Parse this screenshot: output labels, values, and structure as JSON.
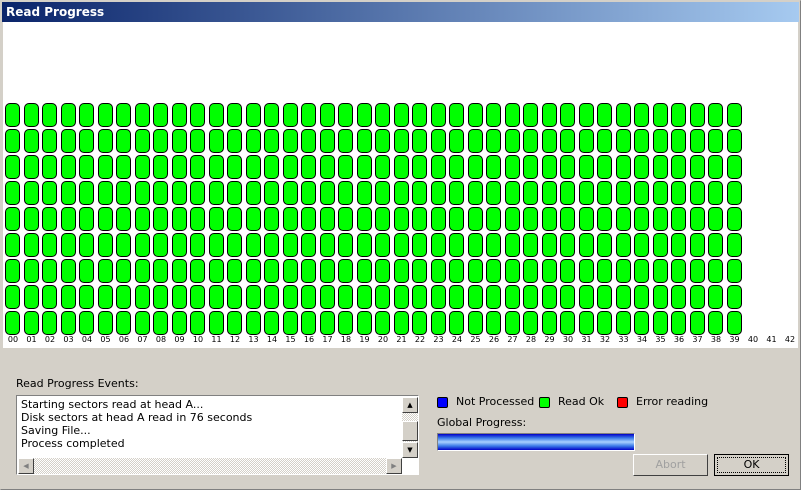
{
  "window": {
    "title": "Read Progress"
  },
  "grid": {
    "rows": 9,
    "column_labels": [
      "00",
      "01",
      "02",
      "03",
      "04",
      "05",
      "06",
      "07",
      "08",
      "09",
      "10",
      "11",
      "12",
      "13",
      "14",
      "15",
      "16",
      "17",
      "18",
      "19",
      "20",
      "21",
      "22",
      "23",
      "24",
      "25",
      "26",
      "27",
      "28",
      "29",
      "30",
      "31",
      "32",
      "33",
      "34",
      "35",
      "36",
      "37",
      "38",
      "39",
      "40",
      "41",
      "42"
    ],
    "columns_with_cells": 40,
    "cell_status": "read_ok"
  },
  "events": {
    "label": "Read Progress Events:",
    "lines": [
      "Starting sectors read at head A...",
      "Disk sectors at head A read in 76 seconds",
      "Saving File...",
      "Process completed"
    ]
  },
  "legend": [
    {
      "label": "Not Processed",
      "color": "#0000ff"
    },
    {
      "label": "Read Ok",
      "color": "#00ff00"
    },
    {
      "label": "Error reading",
      "color": "#ff0000"
    }
  ],
  "progress": {
    "label": "Global Progress:",
    "percent": 100
  },
  "buttons": {
    "abort": "Abort",
    "ok": "OK"
  },
  "status_colors": {
    "read_ok": "#00ff00",
    "not_processed": "#0000ff",
    "error": "#ff0000"
  }
}
